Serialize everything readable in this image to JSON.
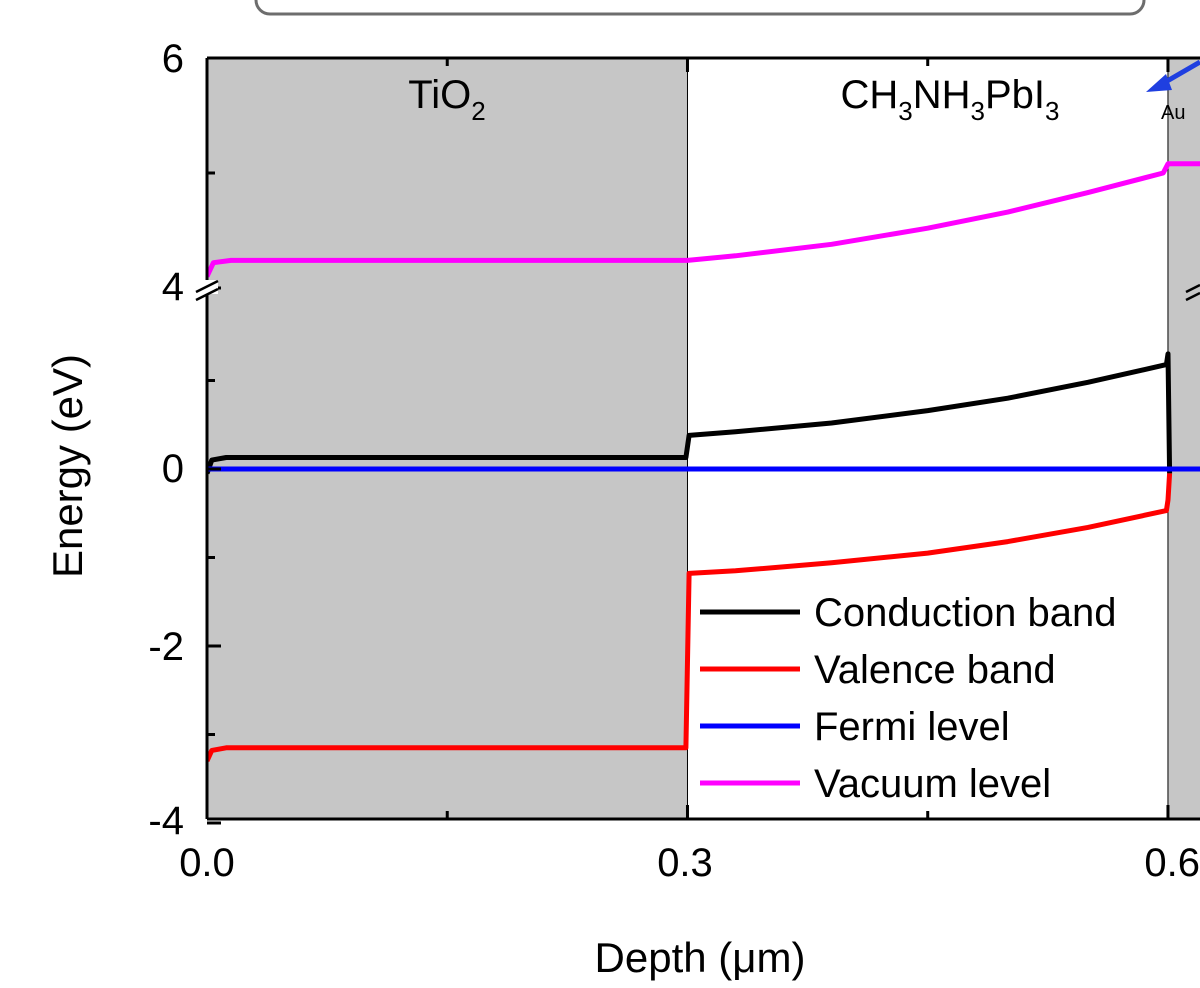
{
  "chart_data": {
    "type": "line",
    "xlabel": "Depth (μm)",
    "ylabel": "Energy (eV)",
    "xlim": [
      0.0,
      0.62
    ],
    "ylim": [
      -4,
      6
    ],
    "x_ticks": [
      "0.0",
      "0.3",
      "0.6"
    ],
    "y_ticks": [
      "-4",
      "-2",
      "0",
      "4",
      "6"
    ],
    "y_axis_break": "between 2 and 4 (broken axis, tick labeled 4 at the break)",
    "layers": [
      {
        "label_parts": [
          "TiO",
          "2"
        ],
        "x_range": [
          0.0,
          0.3
        ],
        "shading": "gray"
      },
      {
        "label_parts": [
          "CH",
          "3",
          "NH",
          "3",
          "PbI",
          "3"
        ],
        "x_range": [
          0.3,
          0.6
        ],
        "shading": "white"
      },
      {
        "label_parts": [
          "Au"
        ],
        "x_range": [
          0.6,
          0.62
        ],
        "shading": "gray"
      }
    ],
    "legend_position": "bottom-right",
    "grid": false,
    "series": [
      {
        "name": "Conduction band",
        "color": "#000000",
        "points": [
          [
            0.0,
            -0.05
          ],
          [
            0.003,
            0.1
          ],
          [
            0.012,
            0.13
          ],
          [
            0.299,
            0.13
          ],
          [
            0.301,
            0.38
          ],
          [
            0.33,
            0.42
          ],
          [
            0.39,
            0.52
          ],
          [
            0.45,
            0.66
          ],
          [
            0.5,
            0.8
          ],
          [
            0.55,
            0.98
          ],
          [
            0.599,
            1.18
          ],
          [
            0.6,
            1.3
          ],
          [
            0.601,
            -0.05
          ]
        ]
      },
      {
        "name": "Valence band",
        "color": "#ff0000",
        "points": [
          [
            0.0,
            -3.3
          ],
          [
            0.003,
            -3.18
          ],
          [
            0.012,
            -3.15
          ],
          [
            0.299,
            -3.15
          ],
          [
            0.301,
            -1.18
          ],
          [
            0.33,
            -1.15
          ],
          [
            0.39,
            -1.06
          ],
          [
            0.45,
            -0.95
          ],
          [
            0.5,
            -0.82
          ],
          [
            0.55,
            -0.66
          ],
          [
            0.599,
            -0.47
          ],
          [
            0.6,
            -0.35
          ],
          [
            0.601,
            -0.05
          ]
        ]
      },
      {
        "name": "Fermi level",
        "color": "#0000ff",
        "points": [
          [
            0.0,
            0.0
          ],
          [
            0.62,
            0.0
          ]
        ]
      },
      {
        "name": "Vacuum level",
        "color": "#ff00ff",
        "points": [
          [
            0.0,
            4.1
          ],
          [
            0.004,
            4.22
          ],
          [
            0.015,
            4.24
          ],
          [
            0.3,
            4.24
          ],
          [
            0.33,
            4.28
          ],
          [
            0.39,
            4.38
          ],
          [
            0.45,
            4.52
          ],
          [
            0.5,
            4.66
          ],
          [
            0.55,
            4.83
          ],
          [
            0.597,
            5.0
          ],
          [
            0.6,
            5.08
          ],
          [
            0.62,
            5.08
          ]
        ]
      }
    ]
  }
}
